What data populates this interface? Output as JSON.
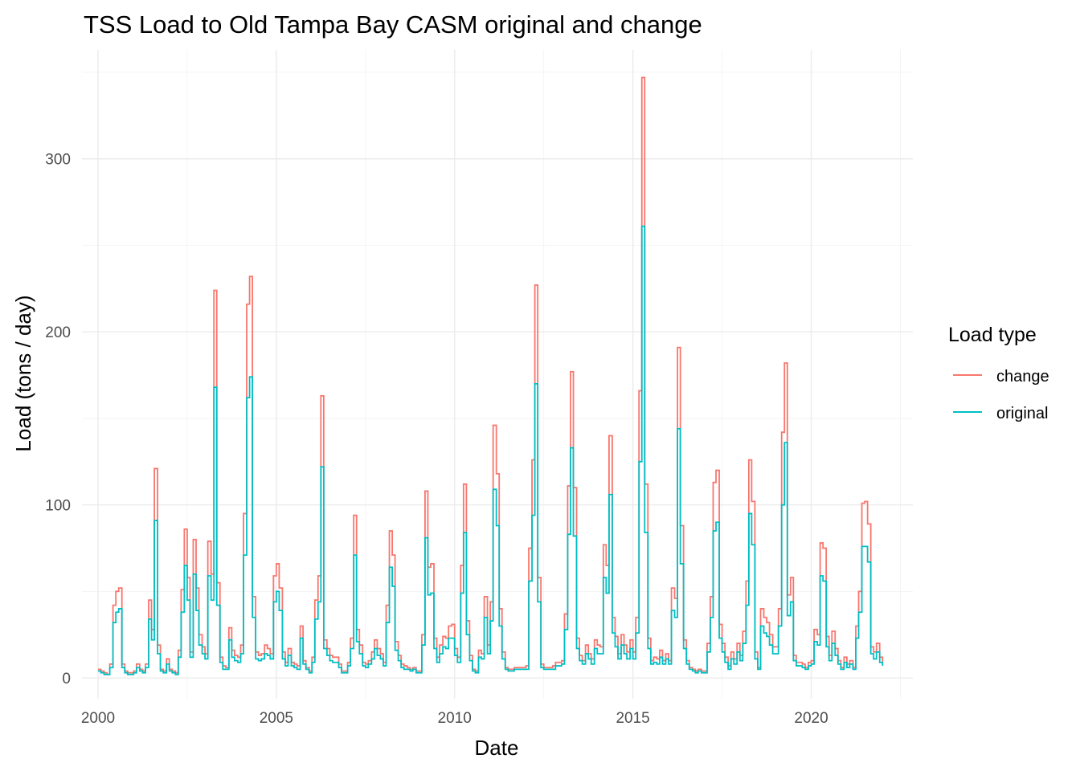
{
  "chart_data": {
    "type": "line",
    "step": true,
    "title": "TSS Load to Old Tampa Bay CASM original and change",
    "xlabel": "Date",
    "ylabel": "Load (tons / day)",
    "xlim": [
      1999.55,
      2022.85
    ],
    "ylim": [
      -12,
      363
    ],
    "x_ticks": [
      2000,
      2005,
      2010,
      2015,
      2020
    ],
    "x_tick_labels": [
      "2000",
      "2005",
      "2010",
      "2015",
      "2020"
    ],
    "y_ticks": [
      0,
      100,
      200,
      300
    ],
    "y_tick_labels": [
      "0",
      "100",
      "200",
      "300"
    ],
    "grid": true,
    "legend": {
      "title": "Load type",
      "position": "right",
      "entries": [
        {
          "label": "change",
          "color": "#f8766d"
        },
        {
          "label": "original",
          "color": "#00bfc4"
        }
      ]
    },
    "x": [
      2000.0,
      2000.08,
      2000.17,
      2000.25,
      2000.33,
      2000.42,
      2000.5,
      2000.58,
      2000.67,
      2000.75,
      2000.83,
      2000.92,
      2001.0,
      2001.08,
      2001.17,
      2001.25,
      2001.33,
      2001.42,
      2001.5,
      2001.58,
      2001.67,
      2001.75,
      2001.83,
      2001.92,
      2002.0,
      2002.08,
      2002.17,
      2002.25,
      2002.33,
      2002.42,
      2002.5,
      2002.58,
      2002.67,
      2002.75,
      2002.83,
      2002.92,
      2003.0,
      2003.08,
      2003.17,
      2003.25,
      2003.33,
      2003.42,
      2003.5,
      2003.58,
      2003.67,
      2003.75,
      2003.83,
      2003.92,
      2004.0,
      2004.08,
      2004.17,
      2004.25,
      2004.33,
      2004.42,
      2004.5,
      2004.58,
      2004.67,
      2004.75,
      2004.83,
      2004.92,
      2005.0,
      2005.08,
      2005.17,
      2005.25,
      2005.33,
      2005.42,
      2005.5,
      2005.58,
      2005.67,
      2005.75,
      2005.83,
      2005.92,
      2006.0,
      2006.08,
      2006.17,
      2006.25,
      2006.33,
      2006.42,
      2006.5,
      2006.58,
      2006.67,
      2006.75,
      2006.83,
      2006.92,
      2007.0,
      2007.08,
      2007.17,
      2007.25,
      2007.33,
      2007.42,
      2007.5,
      2007.58,
      2007.67,
      2007.75,
      2007.83,
      2007.92,
      2008.0,
      2008.08,
      2008.17,
      2008.25,
      2008.33,
      2008.42,
      2008.5,
      2008.58,
      2008.67,
      2008.75,
      2008.83,
      2008.92,
      2009.0,
      2009.08,
      2009.17,
      2009.25,
      2009.33,
      2009.42,
      2009.5,
      2009.58,
      2009.67,
      2009.75,
      2009.83,
      2009.92,
      2010.0,
      2010.08,
      2010.17,
      2010.25,
      2010.33,
      2010.42,
      2010.5,
      2010.58,
      2010.67,
      2010.75,
      2010.83,
      2010.92,
      2011.0,
      2011.08,
      2011.17,
      2011.25,
      2011.33,
      2011.42,
      2011.5,
      2011.58,
      2011.67,
      2011.75,
      2011.83,
      2011.92,
      2012.0,
      2012.08,
      2012.17,
      2012.25,
      2012.33,
      2012.42,
      2012.5,
      2012.58,
      2012.67,
      2012.75,
      2012.83,
      2012.92,
      2013.0,
      2013.08,
      2013.17,
      2013.25,
      2013.33,
      2013.42,
      2013.5,
      2013.58,
      2013.67,
      2013.75,
      2013.83,
      2013.92,
      2014.0,
      2014.08,
      2014.17,
      2014.25,
      2014.33,
      2014.42,
      2014.5,
      2014.58,
      2014.67,
      2014.75,
      2014.83,
      2014.92,
      2015.0,
      2015.08,
      2015.17,
      2015.25,
      2015.33,
      2015.42,
      2015.5,
      2015.58,
      2015.67,
      2015.75,
      2015.83,
      2015.92,
      2016.0,
      2016.08,
      2016.17,
      2016.25,
      2016.33,
      2016.42,
      2016.5,
      2016.58,
      2016.67,
      2016.75,
      2016.83,
      2016.92,
      2017.0,
      2017.08,
      2017.17,
      2017.25,
      2017.33,
      2017.42,
      2017.5,
      2017.58,
      2017.67,
      2017.75,
      2017.83,
      2017.92,
      2018.0,
      2018.08,
      2018.17,
      2018.25,
      2018.33,
      2018.42,
      2018.5,
      2018.58,
      2018.67,
      2018.75,
      2018.83,
      2018.92,
      2019.0,
      2019.08,
      2019.17,
      2019.25,
      2019.33,
      2019.42,
      2019.5,
      2019.58,
      2019.67,
      2019.75,
      2019.83,
      2019.92,
      2020.0,
      2020.08,
      2020.17,
      2020.25,
      2020.33,
      2020.42,
      2020.5,
      2020.58,
      2020.67,
      2020.75,
      2020.83,
      2020.92,
      2021.0,
      2021.08,
      2021.17,
      2021.25,
      2021.33,
      2021.42,
      2021.5,
      2021.58,
      2021.67,
      2021.75,
      2021.83,
      2021.92,
      2022.0
    ],
    "series": [
      {
        "name": "change",
        "color": "#f8766d",
        "values": [
          5,
          4,
          3,
          2,
          8,
          42,
          50,
          52,
          8,
          4,
          3,
          3,
          4,
          8,
          5,
          4,
          8,
          45,
          28,
          121,
          19,
          5,
          4,
          11,
          5,
          4,
          3,
          16,
          51,
          86,
          58,
          15,
          80,
          52,
          25,
          18,
          14,
          79,
          60,
          224,
          55,
          12,
          7,
          6,
          29,
          16,
          13,
          12,
          19,
          95,
          216,
          232,
          47,
          15,
          13,
          14,
          19,
          17,
          14,
          59,
          66,
          52,
          15,
          9,
          17,
          9,
          8,
          7,
          30,
          10,
          6,
          4,
          12,
          45,
          59,
          163,
          22,
          17,
          13,
          12,
          12,
          8,
          4,
          4,
          9,
          23,
          94,
          28,
          19,
          9,
          8,
          10,
          15,
          22,
          17,
          14,
          9,
          42,
          85,
          71,
          21,
          13,
          8,
          7,
          6,
          5,
          6,
          4,
          4,
          25,
          108,
          64,
          66,
          23,
          12,
          19,
          24,
          23,
          30,
          31,
          17,
          12,
          65,
          112,
          33,
          13,
          5,
          4,
          16,
          14,
          47,
          19,
          44,
          146,
          118,
          40,
          15,
          6,
          5,
          5,
          6,
          6,
          6,
          6,
          7,
          75,
          126,
          227,
          58,
          8,
          6,
          6,
          6,
          7,
          9,
          9,
          10,
          37,
          111,
          177,
          110,
          23,
          13,
          10,
          19,
          14,
          11,
          22,
          19,
          18,
          77,
          65,
          140,
          35,
          24,
          14,
          25,
          19,
          15,
          22,
          15,
          35,
          166,
          347,
          112,
          23,
          10,
          12,
          11,
          16,
          10,
          14,
          10,
          52,
          46,
          191,
          88,
          22,
          10,
          6,
          5,
          4,
          5,
          4,
          4,
          20,
          47,
          113,
          120,
          31,
          20,
          12,
          7,
          15,
          11,
          20,
          13,
          27,
          56,
          126,
          102,
          15,
          6,
          40,
          35,
          32,
          25,
          18,
          18,
          40,
          142,
          182,
          48,
          58,
          13,
          9,
          9,
          8,
          6,
          9,
          10,
          28,
          25,
          78,
          75,
          24,
          13,
          27,
          17,
          10,
          6,
          12,
          8,
          10,
          6,
          30,
          50,
          101,
          102,
          89,
          18,
          15,
          20,
          12,
          9
        ]
      },
      {
        "name": "original",
        "color": "#00bfc4",
        "values": [
          4,
          3,
          2,
          2,
          6,
          32,
          38,
          40,
          6,
          3,
          2,
          2,
          3,
          6,
          4,
          3,
          6,
          34,
          22,
          91,
          14,
          4,
          3,
          8,
          4,
          3,
          2,
          12,
          38,
          65,
          45,
          12,
          60,
          39,
          19,
          14,
          11,
          59,
          45,
          168,
          42,
          9,
          5,
          5,
          22,
          12,
          10,
          9,
          14,
          71,
          162,
          174,
          35,
          11,
          10,
          11,
          14,
          13,
          11,
          44,
          50,
          39,
          11,
          7,
          13,
          7,
          6,
          5,
          23,
          8,
          5,
          3,
          9,
          34,
          44,
          122,
          17,
          13,
          10,
          9,
          9,
          6,
          3,
          3,
          7,
          17,
          71,
          21,
          14,
          7,
          6,
          8,
          11,
          17,
          13,
          11,
          7,
          32,
          64,
          53,
          16,
          10,
          6,
          5,
          5,
          4,
          5,
          3,
          3,
          19,
          81,
          48,
          49,
          17,
          9,
          14,
          18,
          17,
          23,
          23,
          13,
          9,
          49,
          84,
          25,
          10,
          4,
          3,
          12,
          11,
          35,
          14,
          33,
          109,
          88,
          30,
          11,
          5,
          4,
          4,
          5,
          5,
          5,
          5,
          5,
          56,
          94,
          170,
          44,
          6,
          5,
          5,
          5,
          5,
          7,
          7,
          8,
          28,
          83,
          133,
          82,
          17,
          10,
          8,
          14,
          11,
          8,
          17,
          14,
          14,
          58,
          49,
          106,
          26,
          18,
          11,
          19,
          14,
          11,
          17,
          11,
          26,
          125,
          261,
          84,
          17,
          8,
          9,
          8,
          12,
          8,
          11,
          8,
          39,
          35,
          144,
          66,
          17,
          8,
          5,
          4,
          3,
          4,
          3,
          3,
          15,
          35,
          85,
          90,
          23,
          15,
          9,
          5,
          11,
          8,
          15,
          10,
          20,
          42,
          95,
          77,
          11,
          5,
          30,
          26,
          24,
          19,
          14,
          14,
          30,
          100,
          136,
          36,
          44,
          10,
          7,
          7,
          6,
          5,
          7,
          8,
          21,
          19,
          59,
          56,
          18,
          10,
          20,
          13,
          8,
          5,
          9,
          6,
          8,
          5,
          23,
          38,
          76,
          76,
          67,
          14,
          11,
          15,
          9,
          7
        ]
      }
    ]
  }
}
